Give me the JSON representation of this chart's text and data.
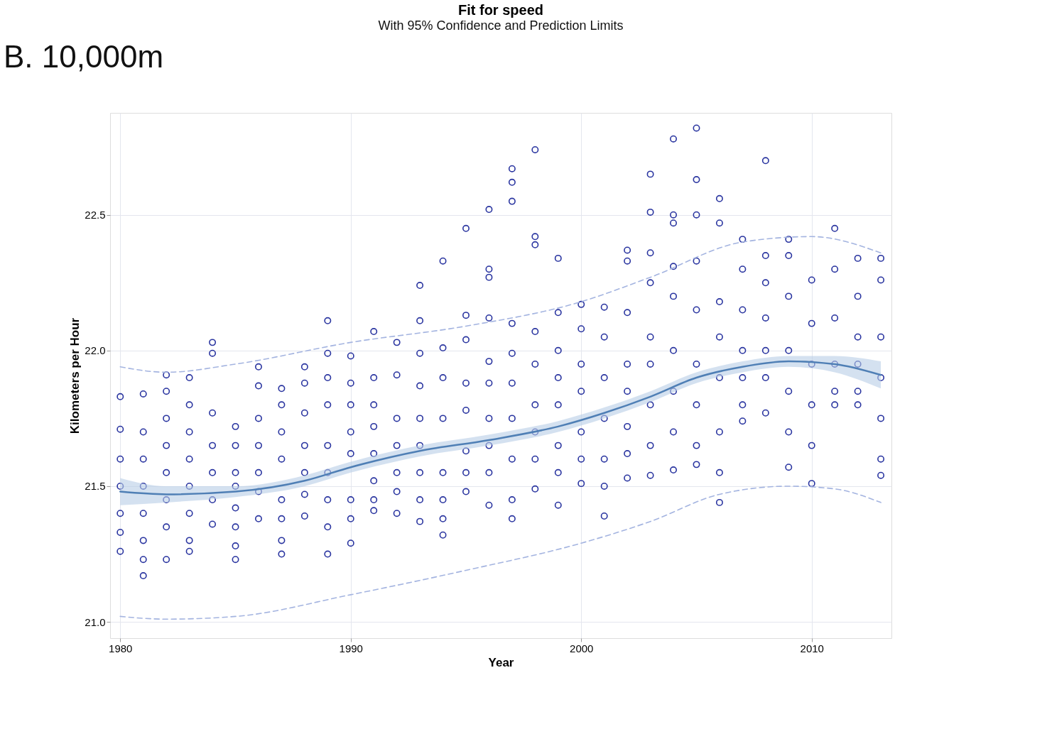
{
  "chart_data": {
    "type": "scatter",
    "title": "Fit for speed",
    "subtitle": "With 95% Confidence and Prediction Limits",
    "xlabel": "Year",
    "ylabel": "Kilometers per Hour",
    "annotations": [
      "B. 10,000m"
    ],
    "xlim": [
      1979.56,
      2013.46
    ],
    "ylim": [
      20.94,
      22.876
    ],
    "xticks": [
      1980,
      1990,
      2000,
      2010
    ],
    "yticks": [
      {
        "value": 21,
        "label": "21.0"
      },
      21.5,
      {
        "value": 22,
        "label": "22.0"
      },
      22.5
    ],
    "grid": true,
    "series": [
      {
        "color": "#2a35a0",
        "marker": "circle",
        "x": [
          1980,
          1980,
          1980,
          1980,
          1980,
          1980,
          1980,
          1981,
          1981,
          1981,
          1981,
          1981,
          1981,
          1981,
          1981,
          1982,
          1982,
          1982,
          1982,
          1982,
          1982,
          1982,
          1982,
          1983,
          1983,
          1983,
          1983,
          1983,
          1983,
          1983,
          1983,
          1984,
          1984,
          1984,
          1984,
          1984,
          1984,
          1984,
          1985,
          1985,
          1985,
          1985,
          1985,
          1985,
          1985,
          1985,
          1986,
          1986,
          1986,
          1986,
          1986,
          1986,
          1986,
          1987,
          1987,
          1987,
          1987,
          1987,
          1987,
          1987,
          1987,
          1988,
          1988,
          1988,
          1988,
          1988,
          1988,
          1988,
          1989,
          1989,
          1989,
          1989,
          1989,
          1989,
          1989,
          1989,
          1989,
          1990,
          1990,
          1990,
          1990,
          1990,
          1990,
          1990,
          1990,
          1991,
          1991,
          1991,
          1991,
          1991,
          1991,
          1991,
          1991,
          1992,
          1992,
          1992,
          1992,
          1992,
          1992,
          1992,
          1993,
          1993,
          1993,
          1993,
          1993,
          1993,
          1993,
          1993,
          1993,
          1994,
          1994,
          1994,
          1994,
          1994,
          1994,
          1994,
          1994,
          1995,
          1995,
          1995,
          1995,
          1995,
          1995,
          1995,
          1995,
          1996,
          1996,
          1996,
          1996,
          1996,
          1996,
          1996,
          1996,
          1996,
          1996,
          1997,
          1997,
          1997,
          1997,
          1997,
          1997,
          1997,
          1997,
          1997,
          1997,
          1998,
          1998,
          1998,
          1998,
          1998,
          1998,
          1998,
          1998,
          1998,
          1999,
          1999,
          1999,
          1999,
          1999,
          1999,
          1999,
          1999,
          2000,
          2000,
          2000,
          2000,
          2000,
          2000,
          2000,
          2001,
          2001,
          2001,
          2001,
          2001,
          2001,
          2001,
          2002,
          2002,
          2002,
          2002,
          2002,
          2002,
          2002,
          2002,
          2003,
          2003,
          2003,
          2003,
          2003,
          2003,
          2003,
          2003,
          2003,
          2004,
          2004,
          2004,
          2004,
          2004,
          2004,
          2004,
          2004,
          2004,
          2005,
          2005,
          2005,
          2005,
          2005,
          2005,
          2005,
          2005,
          2005,
          2006,
          2006,
          2006,
          2006,
          2006,
          2006,
          2006,
          2006,
          2007,
          2007,
          2007,
          2007,
          2007,
          2007,
          2007,
          2008,
          2008,
          2008,
          2008,
          2008,
          2008,
          2008,
          2009,
          2009,
          2009,
          2009,
          2009,
          2009,
          2009,
          2010,
          2010,
          2010,
          2010,
          2010,
          2010,
          2011,
          2011,
          2011,
          2011,
          2011,
          2011,
          2012,
          2012,
          2012,
          2012,
          2012,
          2012,
          2013,
          2013,
          2013,
          2013,
          2013,
          2013,
          2013
        ],
        "values": [
          21.83,
          21.71,
          21.6,
          21.5,
          21.4,
          21.33,
          21.26,
          21.84,
          21.7,
          21.6,
          21.5,
          21.4,
          21.3,
          21.23,
          21.17,
          21.91,
          21.85,
          21.75,
          21.65,
          21.55,
          21.45,
          21.35,
          21.23,
          21.9,
          21.8,
          21.7,
          21.6,
          21.5,
          21.4,
          21.3,
          21.26,
          22.03,
          21.99,
          21.77,
          21.65,
          21.55,
          21.45,
          21.36,
          21.72,
          21.65,
          21.55,
          21.5,
          21.42,
          21.35,
          21.28,
          21.23,
          21.94,
          21.87,
          21.75,
          21.65,
          21.55,
          21.48,
          21.38,
          21.86,
          21.8,
          21.7,
          21.6,
          21.45,
          21.38,
          21.3,
          21.25,
          21.94,
          21.88,
          21.77,
          21.65,
          21.55,
          21.47,
          21.39,
          22.11,
          21.99,
          21.9,
          21.8,
          21.65,
          21.55,
          21.45,
          21.35,
          21.25,
          21.98,
          21.88,
          21.8,
          21.7,
          21.62,
          21.45,
          21.38,
          21.29,
          22.07,
          21.9,
          21.8,
          21.72,
          21.62,
          21.52,
          21.45,
          21.41,
          22.03,
          21.91,
          21.75,
          21.65,
          21.55,
          21.48,
          21.4,
          22.24,
          22.11,
          21.99,
          21.87,
          21.75,
          21.65,
          21.55,
          21.45,
          21.37,
          22.33,
          22.01,
          21.9,
          21.75,
          21.55,
          21.45,
          21.38,
          21.32,
          22.45,
          22.13,
          22.04,
          21.88,
          21.78,
          21.63,
          21.55,
          21.48,
          22.52,
          22.3,
          22.27,
          22.12,
          21.96,
          21.88,
          21.75,
          21.65,
          21.55,
          21.43,
          22.67,
          22.62,
          22.55,
          22.1,
          21.99,
          21.88,
          21.75,
          21.6,
          21.45,
          21.38,
          22.74,
          22.42,
          22.39,
          22.07,
          21.95,
          21.8,
          21.7,
          21.6,
          21.49,
          22.34,
          22.14,
          22.0,
          21.9,
          21.8,
          21.65,
          21.55,
          21.43,
          22.17,
          22.08,
          21.95,
          21.85,
          21.7,
          21.6,
          21.51,
          22.16,
          22.05,
          21.9,
          21.75,
          21.6,
          21.5,
          21.39,
          22.37,
          22.33,
          22.14,
          21.95,
          21.85,
          21.72,
          21.62,
          21.53,
          22.65,
          22.51,
          22.36,
          22.25,
          22.05,
          21.95,
          21.8,
          21.65,
          21.54,
          22.78,
          22.5,
          22.47,
          22.31,
          22.2,
          22.0,
          21.85,
          21.7,
          21.56,
          22.82,
          22.63,
          22.5,
          22.33,
          22.15,
          21.95,
          21.8,
          21.65,
          21.58,
          22.56,
          22.47,
          22.18,
          22.05,
          21.9,
          21.7,
          21.55,
          21.44,
          22.41,
          22.3,
          22.15,
          22.0,
          21.9,
          21.8,
          21.74,
          22.7,
          22.35,
          22.25,
          22.12,
          22.0,
          21.9,
          21.77,
          22.41,
          22.35,
          22.2,
          22.0,
          21.85,
          21.7,
          21.57,
          22.26,
          22.1,
          21.95,
          21.8,
          21.65,
          21.51,
          22.45,
          22.3,
          22.12,
          21.95,
          21.85,
          21.8,
          22.34,
          22.2,
          22.05,
          21.95,
          21.85,
          21.8,
          22.34,
          22.26,
          22.05,
          21.9,
          21.75,
          21.6,
          21.54
        ]
      },
      {
        "type": "line",
        "color": "#4f7fb5",
        "marker": "none",
        "x": [
          1980,
          1982,
          1985,
          1988,
          1990,
          1993,
          1996,
          1999,
          2001,
          2003,
          2005,
          2007,
          2009,
          2011,
          2013
        ],
        "values": [
          21.48,
          21.47,
          21.48,
          21.52,
          21.57,
          21.63,
          21.67,
          21.72,
          21.77,
          21.83,
          21.9,
          21.94,
          21.96,
          21.95,
          21.91
        ],
        "lower": [
          21.43,
          21.44,
          21.46,
          21.5,
          21.55,
          21.61,
          21.65,
          21.7,
          21.75,
          21.81,
          21.88,
          21.92,
          21.94,
          21.92,
          21.86
        ],
        "upper": [
          21.53,
          21.5,
          21.5,
          21.54,
          21.59,
          21.65,
          21.69,
          21.74,
          21.79,
          21.85,
          21.92,
          21.96,
          21.98,
          21.98,
          21.96
        ]
      },
      {
        "type": "line",
        "color": "#a4b4e0",
        "line_style": "dashed",
        "marker": "none",
        "x": [
          1980,
          1982,
          1985,
          1990,
          1995,
          2000,
          2003,
          2007,
          2010,
          2013
        ],
        "values": [
          21.94,
          21.92,
          21.95,
          22.03,
          22.09,
          22.18,
          22.27,
          22.4,
          22.42,
          22.36
        ]
      },
      {
        "type": "line",
        "color": "#a4b4e0",
        "line_style": "dashed",
        "marker": "none",
        "x": [
          1980,
          1982,
          1985,
          1990,
          1995,
          2000,
          2003,
          2006,
          2009,
          2011,
          2013
        ],
        "values": [
          21.02,
          21.01,
          21.02,
          21.1,
          21.19,
          21.29,
          21.37,
          21.47,
          21.5,
          21.49,
          21.44
        ]
      }
    ]
  }
}
